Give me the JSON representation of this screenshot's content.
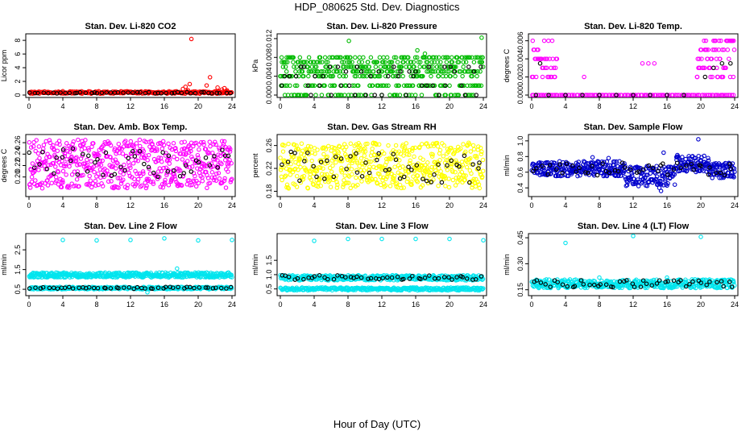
{
  "figure": {
    "title": "HDP_080625  Std. Dev. Diagnostics",
    "xlabel": "Hour of Day (UTC)"
  },
  "chart_data": [
    {
      "type": "scatter",
      "title": "Stan. Dev. Li-820 CO2",
      "ylabel": "Licor ppm",
      "xlim": [
        0,
        24
      ],
      "xticks": [
        "0",
        "4",
        "8",
        "12",
        "16",
        "20",
        "24"
      ],
      "ylim": [
        0,
        8.6
      ],
      "yticks": [
        "0",
        "2",
        "4",
        "6",
        "8"
      ],
      "ytick_values": [
        0,
        2,
        4,
        6,
        8
      ],
      "series": [
        {
          "name": "bulk",
          "color": "#ff0000",
          "band": [
            0.2,
            0.55
          ],
          "from": 0,
          "to": 24,
          "count": 260,
          "seed": 11
        },
        {
          "name": "spikes",
          "color": "#ff0000",
          "points": [
            [
              18.2,
              0.9
            ],
            [
              18.5,
              1.2
            ],
            [
              19.0,
              1.6
            ],
            [
              18.8,
              0.7
            ],
            [
              20.2,
              0.5
            ],
            [
              21.0,
              1.4
            ],
            [
              21.4,
              2.6
            ],
            [
              22.3,
              1.1
            ],
            [
              22.8,
              0.8
            ],
            [
              23.1,
              1.0
            ],
            [
              23.4,
              0.7
            ],
            [
              19.2,
              8.2
            ]
          ]
        },
        {
          "name": "hourly",
          "color": "#000000",
          "band": [
            0.25,
            0.45
          ],
          "from": 0,
          "to": 24,
          "count": 48,
          "seed": 12
        }
      ]
    },
    {
      "type": "scatter",
      "title": "Stan. Dev. Li-820 Pressure",
      "ylabel": "kPa",
      "xlim": [
        0,
        24
      ],
      "xticks": [
        "0",
        "4",
        "8",
        "12",
        "16",
        "20",
        "24"
      ],
      "ylim": [
        0,
        0.0125
      ],
      "yticks": [
        "0.000",
        "0.004",
        "0.008",
        "0.012"
      ],
      "ytick_values": [
        0,
        0.004,
        0.008,
        0.012
      ],
      "series": [
        {
          "name": "bulk",
          "color": "#00bb00",
          "levels": [
            0,
            0.002,
            0.004,
            0.005,
            0.006,
            0.007,
            0.008
          ],
          "from": 0,
          "to": 24,
          "count": 520,
          "seed": 21
        },
        {
          "name": "outliers",
          "color": "#00bb00",
          "points": [
            [
              8.1,
              0.0115
            ],
            [
              23.8,
              0.0122
            ],
            [
              16.2,
              0.0095
            ],
            [
              17.1,
              0.0088
            ]
          ]
        },
        {
          "name": "hourly",
          "color": "#000000",
          "levels": [
            0,
            0.002,
            0.004,
            0.005,
            0.006
          ],
          "from": 0,
          "to": 24,
          "count": 48,
          "seed": 22
        }
      ]
    },
    {
      "type": "scatter",
      "title": "Stan. Dev. Li-820 Temp.",
      "ylabel": "degrees C",
      "xlim": [
        0,
        24
      ],
      "xticks": [
        "0",
        "4",
        "8",
        "12",
        "16",
        "20",
        "24"
      ],
      "ylim": [
        0,
        0.0065
      ],
      "yticks": [
        "0.000",
        "0.002",
        "0.004",
        "0.006"
      ],
      "ytick_values": [
        0,
        0.002,
        0.004,
        0.006
      ],
      "series": [
        {
          "name": "zero",
          "color": "#ff00ff",
          "levels": [
            0
          ],
          "from": 0,
          "to": 24,
          "count": 120,
          "seed": 31
        },
        {
          "name": "early",
          "color": "#ff00ff",
          "levels": [
            0.002,
            0.003,
            0.004,
            0.005,
            0.006
          ],
          "from": 0,
          "to": 3,
          "count": 40,
          "seed": 32
        },
        {
          "name": "late",
          "color": "#ff00ff",
          "levels": [
            0.002,
            0.003,
            0.004,
            0.005,
            0.006
          ],
          "from": 19.5,
          "to": 24,
          "count": 70,
          "seed": 33
        },
        {
          "name": "middle",
          "color": "#ff00ff",
          "points": [
            [
              6.2,
              0.002
            ],
            [
              13.1,
              0.0035
            ],
            [
              13.8,
              0.0035
            ],
            [
              14.5,
              0.0035
            ]
          ]
        },
        {
          "name": "hourly",
          "color": "#000000",
          "points": [
            [
              0.5,
              0
            ],
            [
              2,
              0
            ],
            [
              4,
              0
            ],
            [
              6,
              0
            ],
            [
              8,
              0
            ],
            [
              10,
              0
            ],
            [
              12,
              0
            ],
            [
              14,
              0
            ],
            [
              16,
              0
            ],
            [
              18,
              0
            ],
            [
              20.5,
              0.002
            ],
            [
              21.5,
              0.003
            ],
            [
              22.5,
              0.0035
            ],
            [
              23.5,
              0.0035
            ],
            [
              1,
              0.0035
            ]
          ]
        }
      ]
    },
    {
      "type": "scatter",
      "title": "Stan. Dev. Amb. Box Temp.",
      "ylabel": "degrees C",
      "xlim": [
        0,
        24
      ],
      "xticks": [
        "0",
        "4",
        "8",
        "12",
        "16",
        "20",
        "24"
      ],
      "ylim": [
        0.17,
        0.27
      ],
      "yticks": [
        "0.20",
        "0.22",
        "0.24",
        "0.26"
      ],
      "ytick_values": [
        0.2,
        0.22,
        0.24,
        0.26
      ],
      "series": [
        {
          "name": "bulk",
          "color": "#ff00ff",
          "band": [
            0.18,
            0.265
          ],
          "from": 0,
          "to": 24,
          "count": 560,
          "seed": 41
        },
        {
          "name": "hourly",
          "color": "#000000",
          "band": [
            0.2,
            0.25
          ],
          "from": 0,
          "to": 24,
          "count": 48,
          "seed": 42
        }
      ]
    },
    {
      "type": "scatter",
      "title": "Stan. Dev. Gas Stream RH",
      "ylabel": "percent",
      "xlim": [
        0,
        24
      ],
      "xticks": [
        "0",
        "4",
        "8",
        "12",
        "16",
        "20",
        "24"
      ],
      "ylim": [
        0.175,
        0.275
      ],
      "yticks": [
        "0.18",
        "0.22",
        "0.26"
      ],
      "ytick_values": [
        0.18,
        0.22,
        0.26
      ],
      "series": [
        {
          "name": "bulk",
          "color": "#ffff00",
          "band": [
            0.185,
            0.265
          ],
          "from": 0,
          "to": 24,
          "count": 560,
          "seed": 51
        },
        {
          "name": "hourly",
          "color": "#000000",
          "band": [
            0.195,
            0.25
          ],
          "from": 0,
          "to": 24,
          "count": 48,
          "seed": 52
        }
      ]
    },
    {
      "type": "scatter",
      "title": "Stan. Dev. Sample Flow",
      "ylabel": "ml/min",
      "xlim": [
        0,
        24
      ],
      "xticks": [
        "0",
        "4",
        "8",
        "12",
        "16",
        "20",
        "24"
      ],
      "ylim": [
        0.32,
        1.05
      ],
      "yticks": [
        "0.4",
        "0.6",
        "0.8",
        "1.0"
      ],
      "ytick_values": [
        0.4,
        0.6,
        0.8,
        1.0
      ],
      "series": [
        {
          "name": "bulk",
          "color": "#0000cc",
          "band": [
            0.55,
            0.74
          ],
          "from": 0,
          "to": 11,
          "count": 230,
          "seed": 61
        },
        {
          "name": "dip",
          "color": "#0000cc",
          "band": [
            0.42,
            0.68
          ],
          "from": 11,
          "to": 17,
          "count": 130,
          "seed": 62
        },
        {
          "name": "rise",
          "color": "#0000cc",
          "band": [
            0.6,
            0.82
          ],
          "from": 17,
          "to": 21,
          "count": 90,
          "seed": 63
        },
        {
          "name": "tail",
          "color": "#0000cc",
          "band": [
            0.52,
            0.72
          ],
          "from": 21,
          "to": 24,
          "count": 70,
          "seed": 64
        },
        {
          "name": "outliers",
          "color": "#0000cc",
          "points": [
            [
              19.7,
              1.02
            ],
            [
              15.6,
              0.85
            ],
            [
              15.3,
              0.36
            ],
            [
              15.1,
              0.4
            ],
            [
              7.2,
              0.79
            ],
            [
              9.1,
              0.78
            ]
          ]
        },
        {
          "name": "hourly",
          "color": "#000000",
          "band": [
            0.56,
            0.72
          ],
          "from": 0,
          "to": 24,
          "count": 48,
          "seed": 65
        }
      ]
    },
    {
      "type": "scatter",
      "title": "Stan. Dev. Line 2 Flow",
      "ylabel": "ml/min",
      "xlim": [
        0,
        24
      ],
      "xticks": [
        "0",
        "4",
        "8",
        "12",
        "16",
        "20",
        "24"
      ],
      "ylim": [
        0.3,
        3.2
      ],
      "yticks": [
        "0.5",
        "1.5",
        "2.5"
      ],
      "ytick_values": [
        0.5,
        1.5,
        2.5
      ],
      "series": [
        {
          "name": "upper",
          "color": "#00e5ee",
          "band": [
            1.1,
            1.35
          ],
          "from": 0,
          "to": 24,
          "count": 430,
          "seed": 71
        },
        {
          "name": "lower",
          "color": "#00e5ee",
          "band": [
            0.5,
            0.62
          ],
          "from": 0,
          "to": 24,
          "count": 330,
          "seed": 72
        },
        {
          "name": "spikes",
          "color": "#00e5ee",
          "points": [
            [
              4,
              3.0
            ],
            [
              8,
              2.98
            ],
            [
              12,
              3.0
            ],
            [
              16,
              3.08
            ],
            [
              20,
              2.98
            ],
            [
              24,
              3.0
            ],
            [
              17.5,
              1.55
            ],
            [
              14,
              0.35
            ]
          ]
        },
        {
          "name": "hourly",
          "color": "#000000",
          "band": [
            0.52,
            0.62
          ],
          "from": 0,
          "to": 24,
          "count": 48,
          "seed": 73
        }
      ]
    },
    {
      "type": "scatter",
      "title": "Stan. Dev. Line 3 Flow",
      "ylabel": "ml/min",
      "xlim": [
        0,
        24
      ],
      "xticks": [
        "0",
        "4",
        "8",
        "12",
        "16",
        "20",
        "24"
      ],
      "ylim": [
        0.35,
        2.35
      ],
      "yticks": [
        "0.5",
        "1.0",
        "1.5"
      ],
      "ytick_values": [
        0.5,
        1.0,
        1.5
      ],
      "series": [
        {
          "name": "upper",
          "color": "#00e5ee",
          "band": [
            0.8,
            0.98
          ],
          "from": 0,
          "to": 24,
          "count": 380,
          "seed": 81
        },
        {
          "name": "lower",
          "color": "#00e5ee",
          "band": [
            0.45,
            0.55
          ],
          "from": 0,
          "to": 24,
          "count": 330,
          "seed": 82
        },
        {
          "name": "spikes",
          "color": "#00e5ee",
          "points": [
            [
              4,
              2.18
            ],
            [
              8,
              2.25
            ],
            [
              12,
              2.25
            ],
            [
              16,
              2.25
            ],
            [
              20,
              2.25
            ],
            [
              24,
              2.2
            ]
          ]
        },
        {
          "name": "hourly",
          "color": "#000000",
          "band": [
            0.82,
            0.98
          ],
          "from": 0,
          "to": 24,
          "count": 48,
          "seed": 83
        }
      ]
    },
    {
      "type": "scatter",
      "title": "Stan. Dev. Line 4 (LT) Flow",
      "ylabel": "ml/min",
      "xlim": [
        0,
        24
      ],
      "xticks": [
        "0",
        "4",
        "8",
        "12",
        "16",
        "20",
        "24"
      ],
      "ylim": [
        0.13,
        0.46
      ],
      "yticks": [
        "0.15",
        "0.30",
        "0.45"
      ],
      "ytick_values": [
        0.15,
        0.3,
        0.45
      ],
      "series": [
        {
          "name": "bulk",
          "color": "#00e5ee",
          "band": [
            0.16,
            0.21
          ],
          "from": 0,
          "to": 24,
          "count": 430,
          "seed": 91
        },
        {
          "name": "spikes",
          "color": "#00e5ee",
          "points": [
            [
              4,
              0.42
            ],
            [
              12,
              0.46
            ],
            [
              20,
              0.455
            ],
            [
              8,
              0.22
            ],
            [
              16,
              0.22
            ]
          ]
        },
        {
          "name": "hourly",
          "color": "#000000",
          "band": [
            0.165,
            0.205
          ],
          "from": 0,
          "to": 24,
          "count": 48,
          "seed": 92
        }
      ]
    }
  ]
}
